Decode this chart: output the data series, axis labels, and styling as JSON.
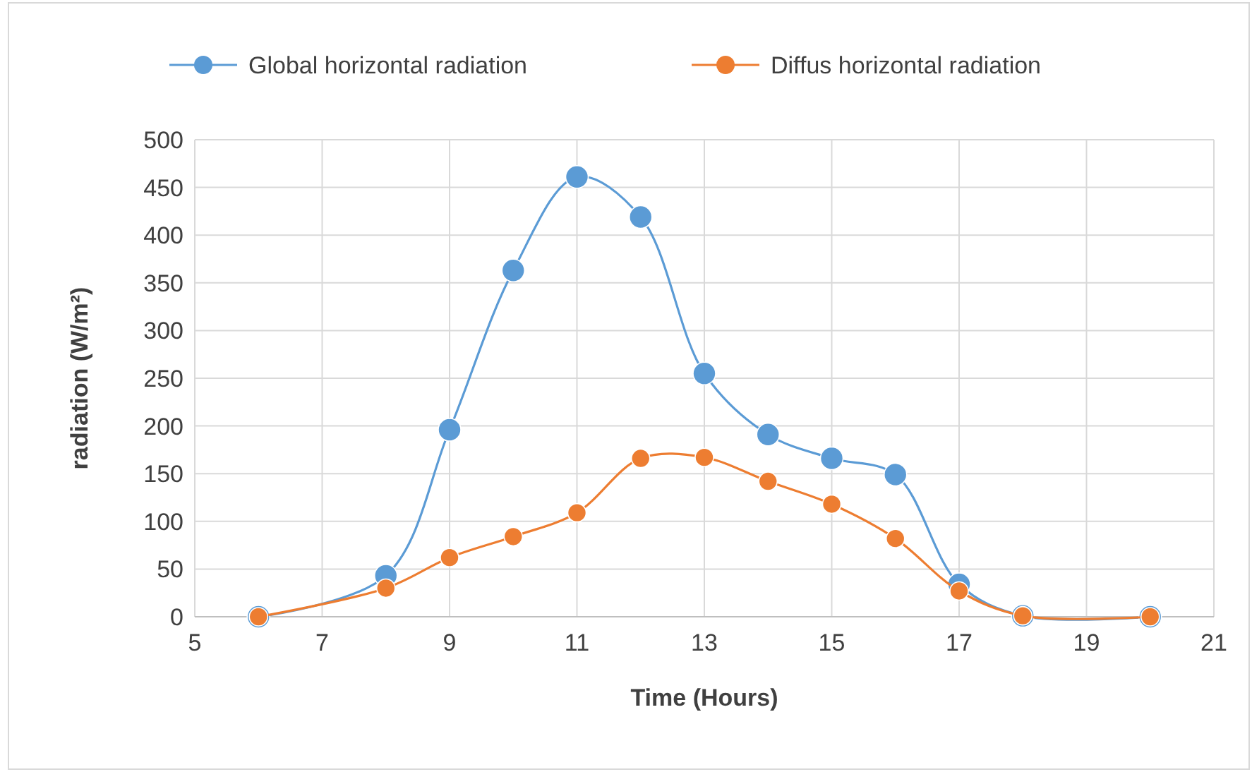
{
  "chart_data": {
    "type": "line",
    "xlabel": "Time (Hours)",
    "ylabel": "radiation (W/m²)",
    "x": [
      6,
      8,
      9,
      10,
      11,
      12,
      13,
      14,
      15,
      16,
      17,
      18,
      20
    ],
    "series": [
      {
        "name": "Global horizontal radiation",
        "color": "#5b9bd5",
        "values": [
          0,
          43,
          196,
          363,
          461,
          419,
          255,
          191,
          166,
          149,
          34,
          1,
          0
        ]
      },
      {
        "name": "Diffus horizontal radiation",
        "color": "#ed7d31",
        "values": [
          0,
          30,
          62,
          84,
          109,
          166,
          167,
          142,
          118,
          82,
          27,
          1,
          0
        ]
      }
    ],
    "xlim": [
      5,
      21
    ],
    "xticks": [
      5,
      7,
      9,
      11,
      13,
      15,
      17,
      19,
      21
    ],
    "ylim": [
      0,
      500
    ],
    "yticks": [
      0,
      50,
      100,
      150,
      200,
      250,
      300,
      350,
      400,
      450,
      500
    ],
    "grid": true,
    "legend": "top",
    "marker": "circle",
    "line_style": "solid"
  }
}
